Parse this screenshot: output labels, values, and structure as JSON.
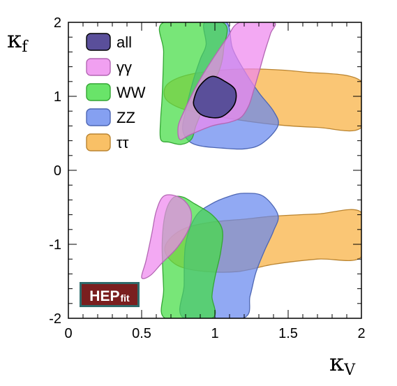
{
  "chart_data": {
    "type": "contour",
    "xlabel": "κV",
    "ylabel": "κf",
    "xlim": [
      0,
      2
    ],
    "ylim": [
      -2,
      2
    ],
    "x_ticks": [
      "0",
      "0.5",
      "1",
      "1.5",
      "2"
    ],
    "y_ticks": [
      "-2",
      "-1",
      "0",
      "1",
      "2"
    ],
    "legend_position": "top-left",
    "series": [
      {
        "name": "all",
        "color": "#5a4f9a",
        "regions": [
          [
            [
              0.86,
              0.98
            ],
            [
              0.9,
              1.15
            ],
            [
              0.98,
              1.27
            ],
            [
              1.07,
              1.2
            ],
            [
              1.14,
              1.08
            ],
            [
              1.13,
              0.88
            ],
            [
              1.04,
              0.72
            ],
            [
              0.92,
              0.74
            ],
            [
              0.86,
              0.86
            ]
          ]
        ]
      },
      {
        "name": "γγ",
        "color": "#ee88ee",
        "regions": [
          [
            [
              0.76,
              0.42
            ],
            [
              0.83,
              0.48
            ],
            [
              0.98,
              0.6
            ],
            [
              1.1,
              0.65
            ],
            [
              1.18,
              0.72
            ],
            [
              1.23,
              0.87
            ],
            [
              1.26,
              1.05
            ],
            [
              1.3,
              1.32
            ],
            [
              1.34,
              1.6
            ],
            [
              1.38,
              1.85
            ],
            [
              1.4,
              2.0
            ],
            [
              1.17,
              2.0
            ],
            [
              1.08,
              1.78
            ],
            [
              1.0,
              1.55
            ],
            [
              0.92,
              1.3
            ],
            [
              0.85,
              1.05
            ],
            [
              0.79,
              0.8
            ],
            [
              0.75,
              0.6
            ]
          ],
          [
            [
              0.5,
              -1.45
            ],
            [
              0.53,
              -1.22
            ],
            [
              0.57,
              -0.85
            ],
            [
              0.6,
              -0.55
            ],
            [
              0.65,
              -0.35
            ],
            [
              0.74,
              -0.35
            ],
            [
              0.81,
              -0.45
            ],
            [
              0.84,
              -0.6
            ],
            [
              0.82,
              -0.8
            ],
            [
              0.74,
              -1.05
            ],
            [
              0.64,
              -1.25
            ],
            [
              0.56,
              -1.42
            ]
          ]
        ]
      },
      {
        "name": "WW",
        "color": "#44dd44",
        "regions": [
          [
            [
              0.63,
              0.42
            ],
            [
              0.69,
              0.38
            ],
            [
              0.77,
              0.35
            ],
            [
              0.84,
              0.42
            ],
            [
              0.87,
              0.6
            ],
            [
              0.91,
              0.8
            ],
            [
              0.95,
              1.05
            ],
            [
              1.03,
              1.35
            ],
            [
              1.06,
              1.65
            ],
            [
              1.05,
              2.0
            ],
            [
              0.65,
              2.0
            ],
            [
              0.65,
              1.6
            ],
            [
              0.64,
              1.0
            ],
            [
              0.63,
              0.7
            ]
          ],
          [
            [
              0.66,
              -2.0
            ],
            [
              0.65,
              -1.6
            ],
            [
              0.64,
              -1.0
            ],
            [
              0.66,
              -0.6
            ],
            [
              0.71,
              -0.38
            ],
            [
              0.78,
              -0.36
            ],
            [
              0.86,
              -0.45
            ],
            [
              0.98,
              -0.6
            ],
            [
              1.05,
              -0.8
            ],
            [
              1.04,
              -1.1
            ],
            [
              1.0,
              -1.45
            ],
            [
              0.98,
              -1.7
            ],
            [
              0.98,
              -2.0
            ]
          ]
        ]
      },
      {
        "name": "ZZ",
        "color": "#6688ee",
        "regions": [
          [
            [
              0.9,
              0.33
            ],
            [
              1.05,
              0.3
            ],
            [
              1.2,
              0.29
            ],
            [
              1.32,
              0.36
            ],
            [
              1.43,
              0.6
            ],
            [
              1.4,
              0.8
            ],
            [
              1.3,
              1.05
            ],
            [
              1.2,
              1.35
            ],
            [
              1.12,
              1.65
            ],
            [
              1.08,
              2.0
            ],
            [
              0.93,
              2.0
            ],
            [
              0.94,
              1.7
            ],
            [
              0.9,
              1.5
            ],
            [
              0.85,
              1.2
            ],
            [
              0.8,
              0.8
            ],
            [
              0.78,
              0.55
            ],
            [
              0.82,
              0.4
            ]
          ],
          [
            [
              0.79,
              -2.0
            ],
            [
              0.79,
              -1.55
            ],
            [
              0.8,
              -1.0
            ],
            [
              0.87,
              -0.62
            ],
            [
              0.98,
              -0.45
            ],
            [
              1.1,
              -0.35
            ],
            [
              1.2,
              -0.31
            ],
            [
              1.33,
              -0.35
            ],
            [
              1.43,
              -0.6
            ],
            [
              1.4,
              -0.82
            ],
            [
              1.34,
              -1.08
            ],
            [
              1.28,
              -1.38
            ],
            [
              1.24,
              -1.7
            ],
            [
              1.19,
              -2.0
            ]
          ]
        ]
      },
      {
        "name": "ττ",
        "color": "#f8b040",
        "regions": [
          [
            [
              0.66,
              0.98
            ],
            [
              0.67,
              1.15
            ],
            [
              0.78,
              1.27
            ],
            [
              0.97,
              1.34
            ],
            [
              1.25,
              1.37
            ],
            [
              1.6,
              1.33
            ],
            [
              2.0,
              1.2
            ],
            [
              2.0,
              0.58
            ],
            [
              1.7,
              0.58
            ],
            [
              1.4,
              0.62
            ],
            [
              1.1,
              0.7
            ],
            [
              0.88,
              0.78
            ],
            [
              0.74,
              0.86
            ]
          ],
          [
            [
              0.66,
              -1.1
            ],
            [
              0.69,
              -0.93
            ],
            [
              0.8,
              -0.78
            ],
            [
              0.98,
              -0.7
            ],
            [
              1.2,
              -0.66
            ],
            [
              1.4,
              -0.62
            ],
            [
              1.7,
              -0.59
            ],
            [
              2.0,
              -0.57
            ],
            [
              2.0,
              -1.17
            ],
            [
              1.7,
              -1.2
            ],
            [
              1.4,
              -1.27
            ],
            [
              1.15,
              -1.37
            ],
            [
              0.9,
              -1.36
            ],
            [
              0.74,
              -1.28
            ]
          ]
        ]
      }
    ]
  },
  "logo": {
    "main": "HEP",
    "sub": "fit"
  }
}
